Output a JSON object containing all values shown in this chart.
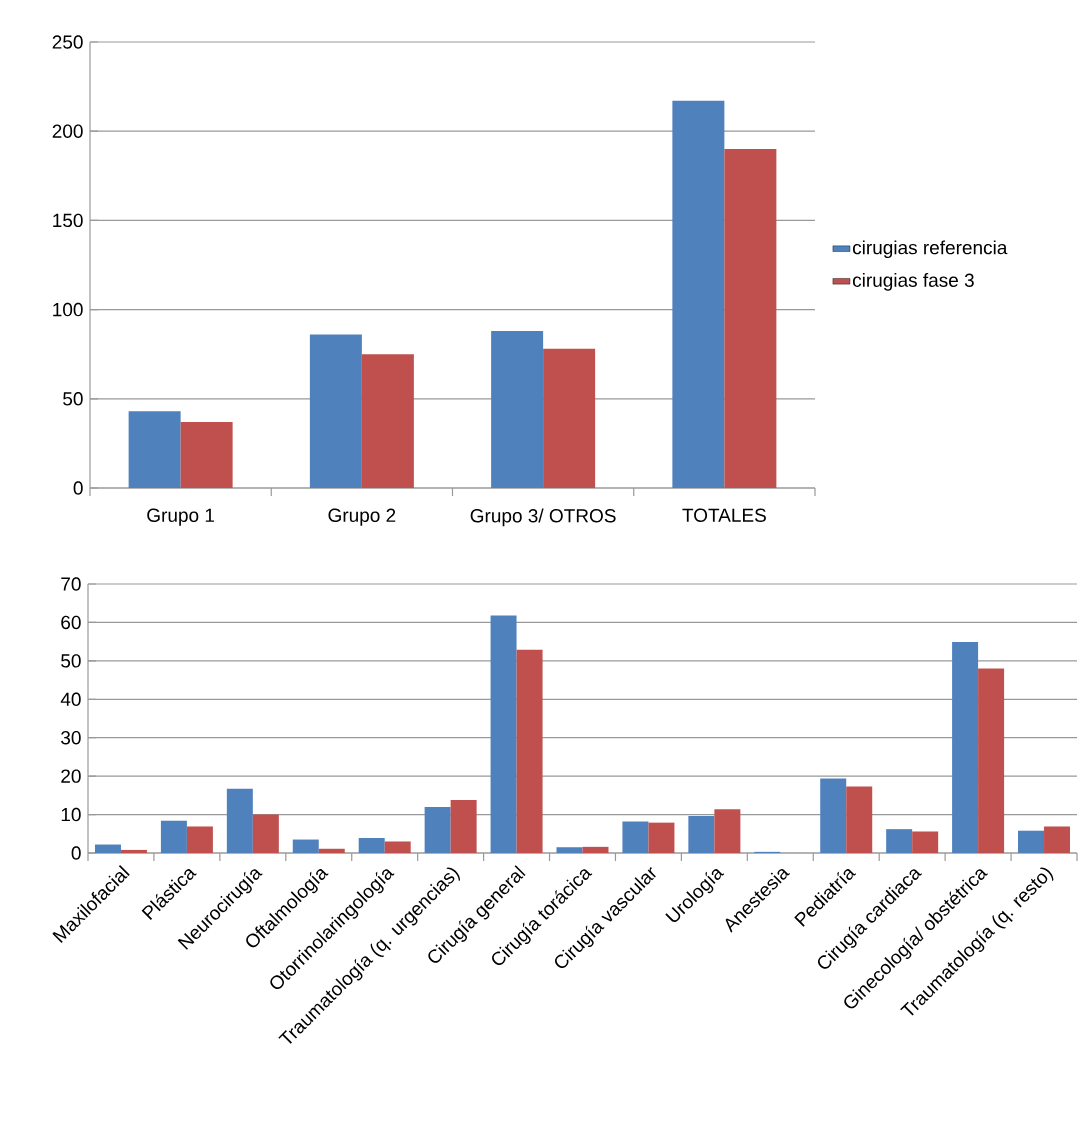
{
  "chart_data": [
    {
      "type": "bar",
      "categories": [
        "Grupo 1",
        "Grupo 2",
        "Grupo 3/ OTROS",
        "TOTALES"
      ],
      "series": [
        {
          "name": "cirugias referencia",
          "color": "#4f81bd",
          "values": [
            43,
            86,
            88,
            217
          ]
        },
        {
          "name": "cirugias fase 3",
          "color": "#c0504d",
          "values": [
            37,
            75,
            78,
            190
          ]
        }
      ],
      "ylim": [
        0,
        250
      ],
      "yticks": [
        0,
        50,
        100,
        150,
        200,
        250
      ],
      "grid": "y",
      "legend": "right"
    },
    {
      "type": "bar",
      "categories": [
        "Maxilofacial",
        "Plástica",
        "Neurocirugía",
        "Oftalmología",
        "Otorrinolaringología",
        "Traumatología (q. urgencias)",
        "Cirugía general",
        "Cirugía torácica",
        "Cirugía vascular",
        "Urología",
        "Anestesia",
        "Pediatría",
        "Cirugía cardiaca",
        "Ginecología/ obstétrica",
        "Traumatología (q. resto)"
      ],
      "series": [
        {
          "color": "#4f81bd",
          "values": [
            2.2,
            8.4,
            16.7,
            3.5,
            3.9,
            12.0,
            61.8,
            1.5,
            8.2,
            9.6,
            0.3,
            19.4,
            6.2,
            54.9,
            5.8
          ]
        },
        {
          "color": "#c0504d",
          "values": [
            0.8,
            6.9,
            10.0,
            1.1,
            3.0,
            13.8,
            52.9,
            1.6,
            7.9,
            11.4,
            null,
            17.3,
            5.6,
            48.0,
            6.9
          ]
        }
      ],
      "ylim": [
        0,
        70
      ],
      "yticks": [
        0,
        10,
        20,
        30,
        40,
        50,
        60,
        70
      ],
      "grid": "y"
    }
  ]
}
